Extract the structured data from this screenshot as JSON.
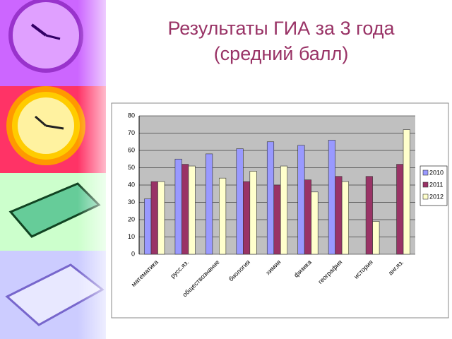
{
  "chart_data": {
    "type": "bar",
    "title": "Результаты ГИА за 3 года",
    "subtitle": "(средний балл)",
    "categories": [
      "математика",
      "русс.яз.",
      "обществознание",
      "биология",
      "химия",
      "физика",
      "география",
      "история",
      "анг.яз."
    ],
    "series": [
      {
        "name": "2010",
        "color": "#9999ff",
        "values": [
          32,
          55,
          58,
          61,
          65,
          63,
          66,
          null,
          null
        ]
      },
      {
        "name": "2011",
        "color": "#993366",
        "values": [
          42,
          52,
          null,
          42,
          40,
          43,
          45,
          45,
          52
        ]
      },
      {
        "name": "2012",
        "color": "#ffffcc",
        "values": [
          42,
          51,
          44,
          48,
          51,
          36,
          42,
          19,
          72
        ]
      }
    ],
    "ylim": [
      0,
      80
    ],
    "yticks": [
      0,
      10,
      20,
      30,
      40,
      50,
      60,
      70,
      80
    ],
    "grid": true,
    "legend": "right"
  }
}
